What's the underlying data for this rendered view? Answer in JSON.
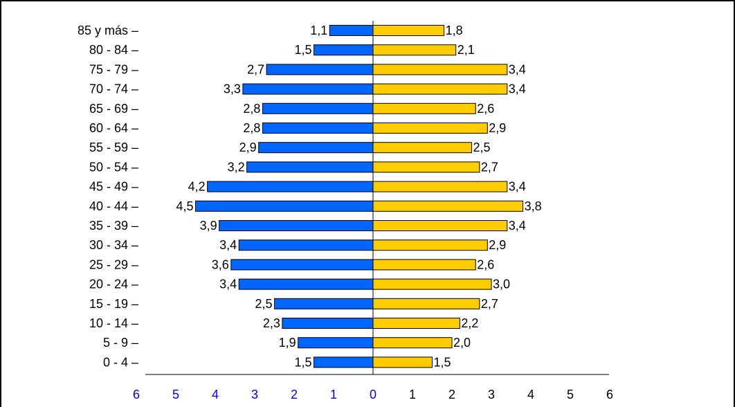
{
  "chart_data": {
    "type": "bar",
    "orientation": "horizontal",
    "layout": "population-pyramid",
    "categories": [
      "85 y más",
      "80 - 84",
      "75 - 79",
      "70 - 74",
      "65 - 69",
      "60 - 64",
      "55 - 59",
      "50 - 54",
      "45 - 49",
      "40 - 44",
      "35 - 39",
      "30 - 34",
      "25 - 29",
      "20 - 24",
      "15 - 19",
      "10 - 14",
      "5 - 9",
      "0 - 4"
    ],
    "series": [
      {
        "side": "left",
        "color": "#0066ff",
        "values": [
          1.1,
          1.5,
          2.7,
          3.3,
          2.8,
          2.8,
          2.9,
          3.2,
          4.2,
          4.5,
          3.9,
          3.4,
          3.6,
          3.4,
          2.5,
          2.3,
          1.9,
          1.5
        ],
        "labels": [
          "1,1",
          "1,5",
          "2,7",
          "3,3",
          "2,8",
          "2,8",
          "2,9",
          "3,2",
          "4,2",
          "4,5",
          "3,9",
          "3,4",
          "3,6",
          "3,4",
          "2,5",
          "2,3",
          "1,9",
          "1,5"
        ]
      },
      {
        "side": "right",
        "color": "#ffcc00",
        "values": [
          1.8,
          2.1,
          3.4,
          3.4,
          2.6,
          2.9,
          2.5,
          2.7,
          3.4,
          3.8,
          3.4,
          2.9,
          2.6,
          3.0,
          2.7,
          2.2,
          2.0,
          1.5
        ],
        "labels": [
          "1,8",
          "2,1",
          "3,4",
          "3,4",
          "2,6",
          "2,9",
          "2,5",
          "2,7",
          "3,4",
          "3,8",
          "3,4",
          "2,9",
          "2,6",
          "3,0",
          "2,7",
          "2,2",
          "2,0",
          "1,5"
        ]
      }
    ],
    "xticks_left": [
      "6",
      "5",
      "4",
      "3",
      "2",
      "1"
    ],
    "xticks_right": [
      "0",
      "1",
      "2",
      "3",
      "4",
      "5",
      "6"
    ],
    "xlim": [
      -6,
      6
    ],
    "xtick_left_color": "#0000ff",
    "xtick_right_color": "#000000",
    "grid": false,
    "legend": "none"
  }
}
